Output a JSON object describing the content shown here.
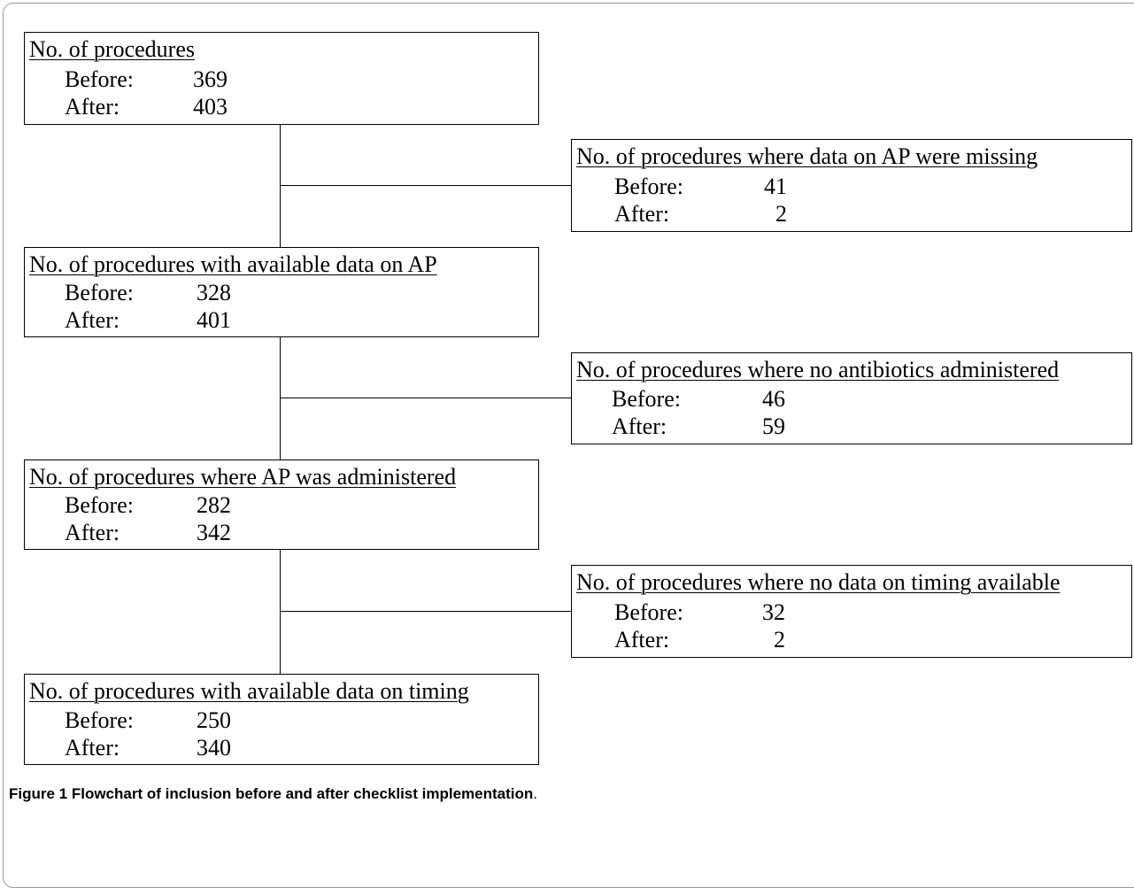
{
  "diagram": {
    "main_steps": [
      {
        "title": "No. of procedures",
        "before_label": "Before:",
        "before_value": "369",
        "after_label": "After:",
        "after_value": "403"
      },
      {
        "title": "No. of procedures with available data on AP",
        "before_label": "Before:",
        "before_value": "328",
        "after_label": "After:",
        "after_value": "401"
      },
      {
        "title": "No. of procedures where AP was administered",
        "before_label": "Before:",
        "before_value": "282",
        "after_label": "After:",
        "after_value": "342"
      },
      {
        "title": "No. of procedures with available data on timing",
        "before_label": "Before:",
        "before_value": "250",
        "after_label": "After:",
        "after_value": "340"
      }
    ],
    "exclusions": [
      {
        "title": "No. of procedures where data on AP were missing",
        "before_label": "Before:",
        "before_value": "41",
        "after_label": "After:",
        "after_value": "2"
      },
      {
        "title": "No. of procedures where no antibiotics administered",
        "before_label": "Before:",
        "before_value": "46",
        "after_label": "After:",
        "after_value": "59"
      },
      {
        "title": "No. of procedures where no data on timing available",
        "before_label": "Before:",
        "before_value": "32",
        "after_label": "After:",
        "after_value": "2"
      }
    ]
  },
  "caption": {
    "bold": "Figure 1 Flowchart of inclusion before and after checklist implementation",
    "rest": "."
  }
}
